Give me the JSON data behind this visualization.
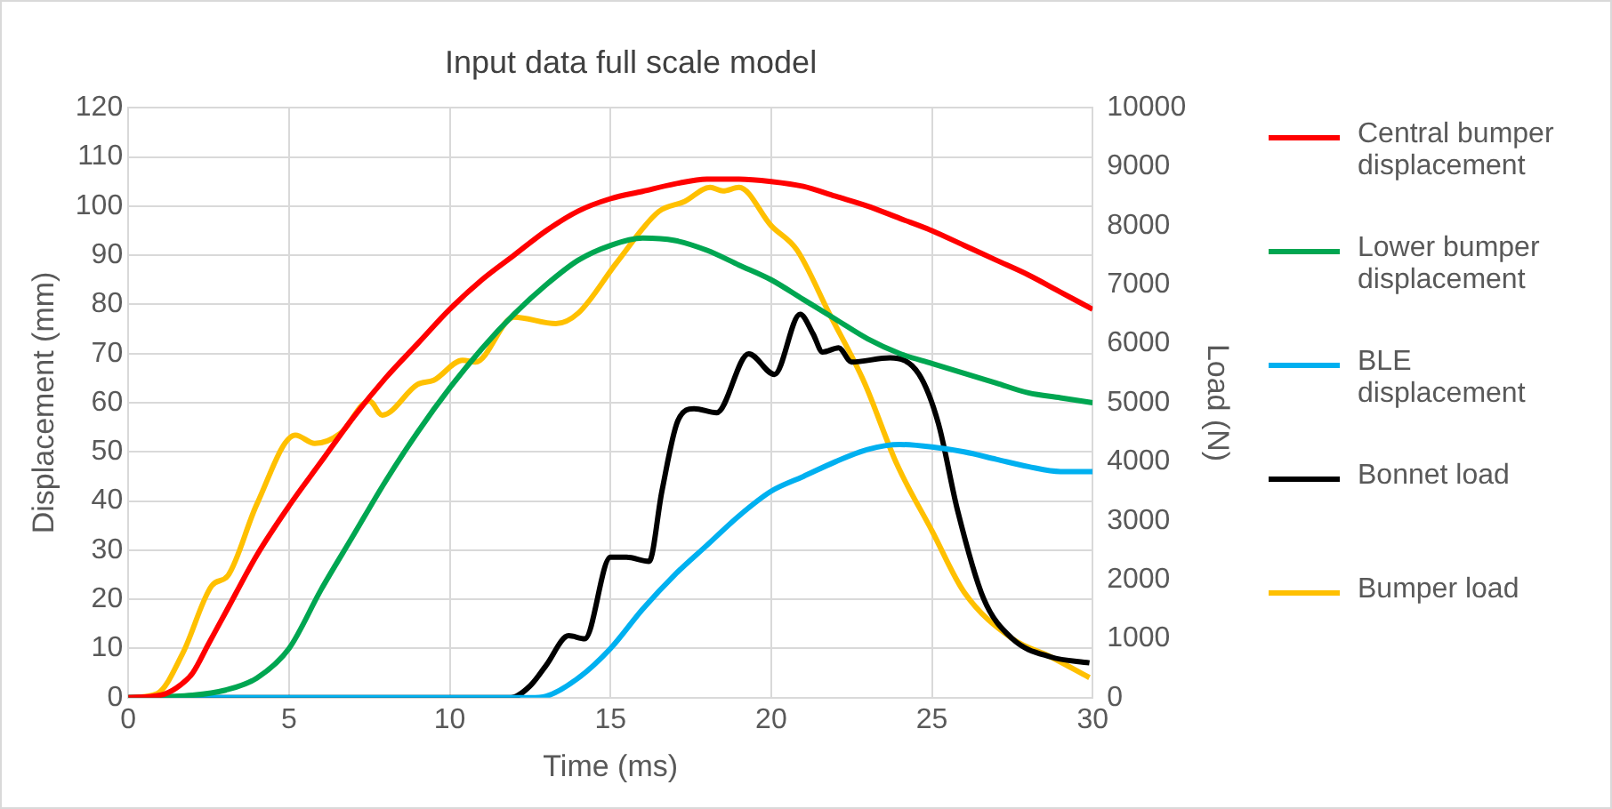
{
  "chart_data": {
    "type": "line",
    "title": "Input data full scale model",
    "xlabel": "Time (ms)",
    "ylabel": "Displacement (mm)",
    "y2label": "Load (N)",
    "xlim": [
      0,
      30
    ],
    "xticks": [
      0,
      5,
      10,
      15,
      20,
      25,
      30
    ],
    "ylim": [
      0,
      120
    ],
    "yticks": [
      0,
      10,
      20,
      30,
      40,
      50,
      60,
      70,
      80,
      90,
      100,
      110,
      120
    ],
    "y2lim": [
      0,
      10000
    ],
    "y2ticks": [
      0,
      1000,
      2000,
      3000,
      4000,
      5000,
      6000,
      7000,
      8000,
      9000,
      10000
    ],
    "grid": true,
    "legend": "right",
    "marker": "none",
    "line_style": "solid",
    "series": [
      {
        "name": "Central bumper displacement",
        "color": "#ff0000",
        "x": [
          0,
          1,
          1.5,
          2,
          2.5,
          3,
          4,
          5,
          6,
          7,
          8,
          9,
          10,
          11,
          12,
          13,
          14,
          15,
          16,
          17,
          18,
          19,
          20,
          21,
          22,
          23,
          24,
          25,
          26,
          27,
          28,
          29,
          30
        ],
        "values": [
          0,
          0.5,
          2,
          5,
          11,
          17,
          29,
          39,
          48,
          57,
          65,
          72,
          79,
          85,
          90,
          95,
          99,
          101.5,
          103,
          104.5,
          105.5,
          105.5,
          105,
          104,
          102,
          100,
          97.5,
          95,
          92,
          89,
          86,
          82.5,
          79
        ]
      },
      {
        "name": "Lower bumper displacement",
        "color": "#00a651",
        "x": [
          0,
          2,
          3,
          4,
          5,
          6,
          7,
          8,
          9,
          10,
          11,
          12,
          13,
          14,
          15,
          16,
          17,
          18,
          19,
          20,
          21,
          22,
          23,
          24,
          25,
          26,
          27,
          28,
          29,
          30
        ],
        "values": [
          0,
          0.5,
          1.5,
          4,
          10,
          22,
          33,
          44,
          54,
          63,
          71,
          78,
          84,
          89,
          92,
          93.5,
          93,
          91,
          88,
          85,
          81,
          77,
          73,
          70,
          68,
          66,
          64,
          62,
          61,
          60
        ]
      },
      {
        "name": "BLE displacement",
        "color": "#00b0f0",
        "x": [
          0,
          12.5,
          13,
          14,
          15,
          16,
          17,
          18,
          19,
          20,
          21,
          22,
          23,
          24,
          25,
          26,
          27,
          28,
          29,
          30
        ],
        "values": [
          0,
          0,
          0.3,
          4,
          10,
          18,
          25,
          31,
          37,
          42,
          45,
          48,
          50.5,
          51.5,
          51,
          50,
          48.5,
          47,
          46,
          46
        ]
      },
      {
        "name": "Bonnet load",
        "color": "#000000",
        "axis": "y2",
        "x": [
          0,
          11.9,
          12.5,
          13,
          13.7,
          14.2,
          15,
          15.5,
          16.2,
          16.6,
          17.1,
          17.6,
          18.3,
          19.3,
          20.1,
          20.9,
          21.3,
          21.6,
          22.1,
          22.5,
          23.7,
          24.6,
          25.2,
          25.8,
          26.6,
          27.5,
          28.7,
          29.9
        ],
        "values": [
          0,
          0,
          200,
          550,
          1050,
          1000,
          2380,
          2380,
          2310,
          3500,
          4700,
          4900,
          4830,
          5830,
          5480,
          6500,
          6170,
          5860,
          5930,
          5690,
          5760,
          5480,
          4650,
          3170,
          1690,
          1000,
          690,
          590
        ]
      },
      {
        "name": "Bumper load",
        "color": "#ffc000",
        "axis": "y2",
        "x": [
          0,
          0.9,
          1.7,
          2.6,
          3.1,
          4,
          5.2,
          5.8,
          6.6,
          7.5,
          7.9,
          9,
          9.5,
          10.4,
          10.8,
          12,
          13.3,
          14,
          15.2,
          16.5,
          17.3,
          18.1,
          18.5,
          19,
          20,
          20.8,
          21.8,
          22.9,
          23.9,
          25,
          26,
          27.5,
          28.7,
          29.9
        ],
        "values": [
          0,
          70,
          760,
          1900,
          2070,
          3280,
          4450,
          4310,
          4480,
          5030,
          4790,
          5310,
          5380,
          5720,
          5690,
          6450,
          6340,
          6520,
          7380,
          8240,
          8410,
          8650,
          8590,
          8650,
          8000,
          7590,
          6520,
          5340,
          3970,
          2830,
          1790,
          1000,
          690,
          340
        ]
      }
    ]
  }
}
